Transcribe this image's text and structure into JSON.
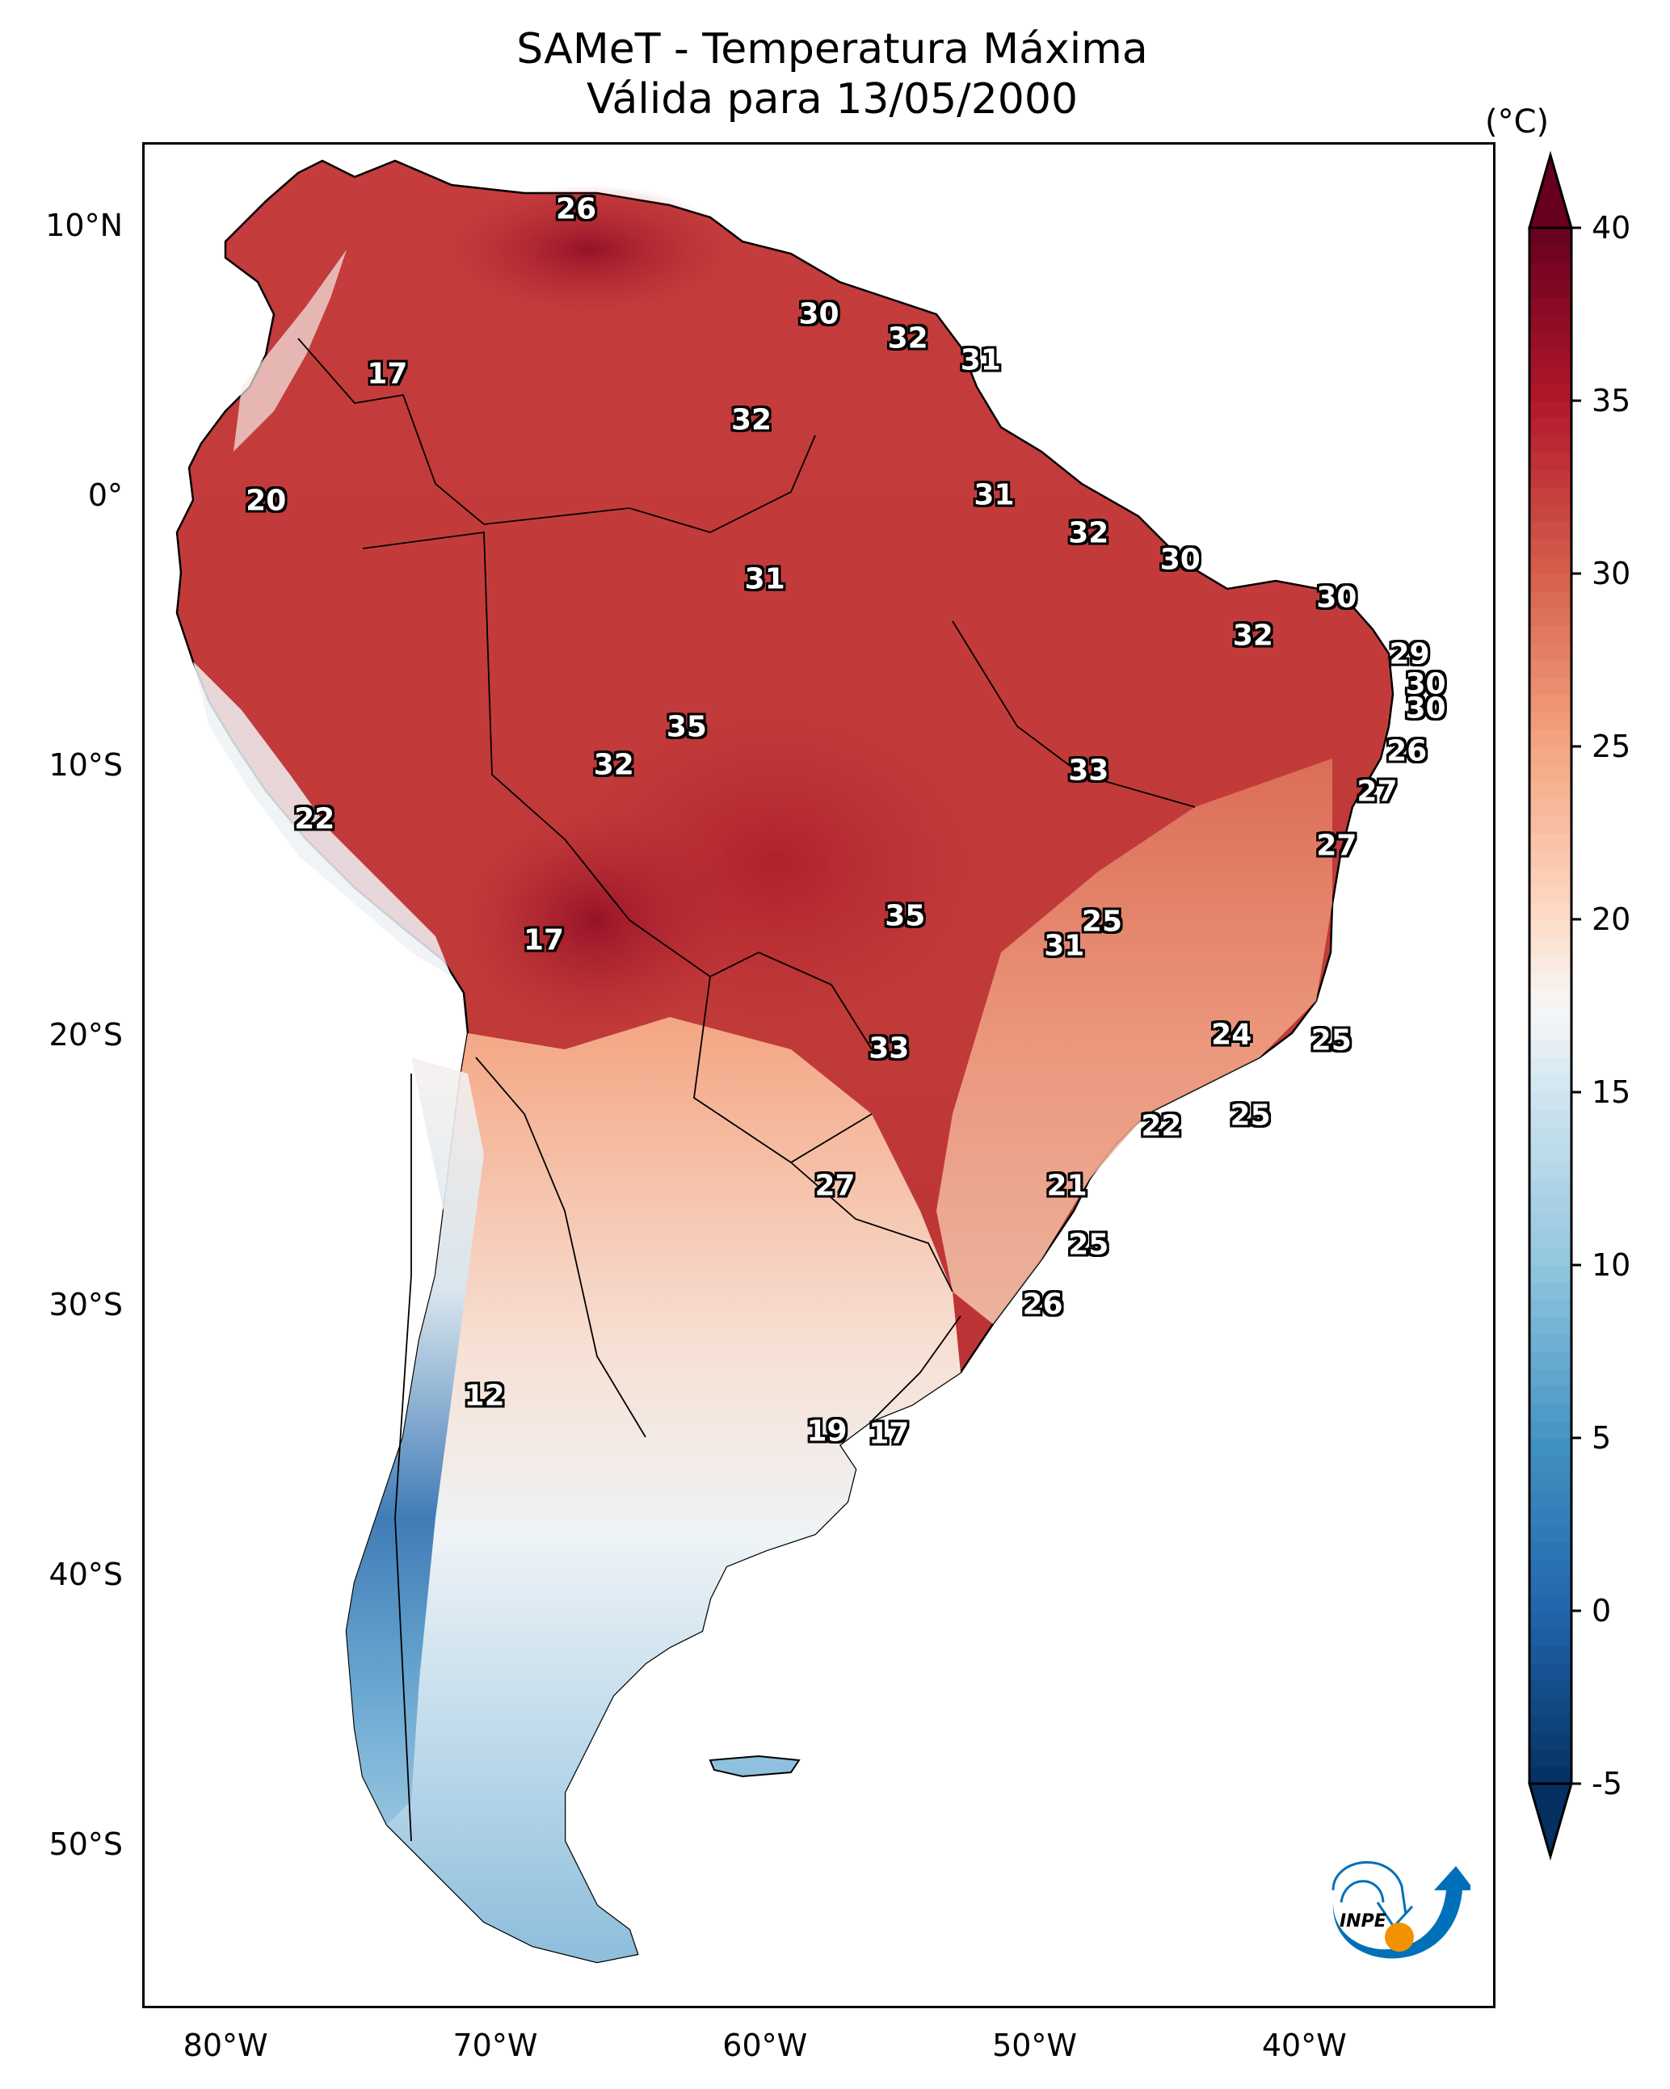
{
  "title": {
    "line1": "SAMeT - Temperatura Máxima",
    "line2": "Válida para 13/05/2000"
  },
  "chart_data": {
    "type": "heatmap",
    "title": "SAMeT - Temperatura Máxima",
    "subtitle": "Válida para 13/05/2000",
    "xlabel": "",
    "ylabel": "",
    "x_ticks": [
      "80°W",
      "70°W",
      "60°W",
      "50°W",
      "40°W"
    ],
    "x_tick_values": [
      -80,
      -70,
      -60,
      -50,
      -40
    ],
    "y_ticks": [
      "10°N",
      "0°",
      "10°S",
      "20°S",
      "30°S",
      "40°S",
      "50°S"
    ],
    "y_tick_values": [
      10,
      0,
      -10,
      -20,
      -30,
      -40,
      -50
    ],
    "xlim": [
      -83,
      -33
    ],
    "ylim": [
      -56,
      13
    ],
    "grid": false,
    "colorbar": {
      "unit": "(°C)",
      "ticks": [
        40,
        35,
        30,
        25,
        20,
        15,
        10,
        5,
        0,
        -5
      ],
      "range": [
        -5,
        40
      ],
      "extend": "both",
      "colormap": "RdBu_r",
      "placement": "right"
    },
    "annotations": [
      {
        "value": 26,
        "lon": -67.0,
        "lat": 10.6
      },
      {
        "value": 30,
        "lon": -58.0,
        "lat": 6.7
      },
      {
        "value": 32,
        "lon": -54.7,
        "lat": 5.8
      },
      {
        "value": 31,
        "lon": -52.0,
        "lat": 5.0
      },
      {
        "value": 17,
        "lon": -74.0,
        "lat": 4.5
      },
      {
        "value": 32,
        "lon": -60.5,
        "lat": 2.8
      },
      {
        "value": 20,
        "lon": -78.5,
        "lat": -0.2
      },
      {
        "value": 31,
        "lon": -51.5,
        "lat": 0.0
      },
      {
        "value": 32,
        "lon": -48.0,
        "lat": -1.4
      },
      {
        "value": 30,
        "lon": -44.6,
        "lat": -2.4
      },
      {
        "value": 31,
        "lon": -60.0,
        "lat": -3.1
      },
      {
        "value": 30,
        "lon": -38.8,
        "lat": -3.8
      },
      {
        "value": 32,
        "lon": -41.9,
        "lat": -5.2
      },
      {
        "value": 29,
        "lon": -36.1,
        "lat": -5.9
      },
      {
        "value": 30,
        "lon": -35.5,
        "lat": -7.0
      },
      {
        "value": 30,
        "lon": -35.5,
        "lat": -7.9
      },
      {
        "value": 35,
        "lon": -62.9,
        "lat": -8.6
      },
      {
        "value": 26,
        "lon": -36.2,
        "lat": -9.5
      },
      {
        "value": 33,
        "lon": -48.0,
        "lat": -10.2
      },
      {
        "value": 32,
        "lon": -65.6,
        "lat": -10.0
      },
      {
        "value": 27,
        "lon": -37.3,
        "lat": -11.0
      },
      {
        "value": 22,
        "lon": -76.7,
        "lat": -12.0
      },
      {
        "value": 27,
        "lon": -38.8,
        "lat": -13.0
      },
      {
        "value": 35,
        "lon": -54.8,
        "lat": -15.6
      },
      {
        "value": 25,
        "lon": -47.5,
        "lat": -15.8
      },
      {
        "value": 17,
        "lon": -68.2,
        "lat": -16.5
      },
      {
        "value": 31,
        "lon": -48.9,
        "lat": -16.7
      },
      {
        "value": 24,
        "lon": -42.7,
        "lat": -20.0
      },
      {
        "value": 25,
        "lon": -39.0,
        "lat": -20.2
      },
      {
        "value": 33,
        "lon": -55.4,
        "lat": -20.5
      },
      {
        "value": 25,
        "lon": -42.0,
        "lat": -23.0
      },
      {
        "value": 22,
        "lon": -45.3,
        "lat": -23.4
      },
      {
        "value": 21,
        "lon": -48.8,
        "lat": -25.6
      },
      {
        "value": 27,
        "lon": -57.4,
        "lat": -25.6
      },
      {
        "value": 25,
        "lon": -48.0,
        "lat": -27.8
      },
      {
        "value": 26,
        "lon": -49.7,
        "lat": -30.0
      },
      {
        "value": 12,
        "lon": -70.4,
        "lat": -33.4
      },
      {
        "value": 19,
        "lon": -57.7,
        "lat": -34.7
      },
      {
        "value": 17,
        "lon": -55.4,
        "lat": -34.8
      }
    ]
  },
  "logo": {
    "text": "INPE",
    "colors": {
      "arc": "#0070b8",
      "dot": "#f39200"
    }
  }
}
